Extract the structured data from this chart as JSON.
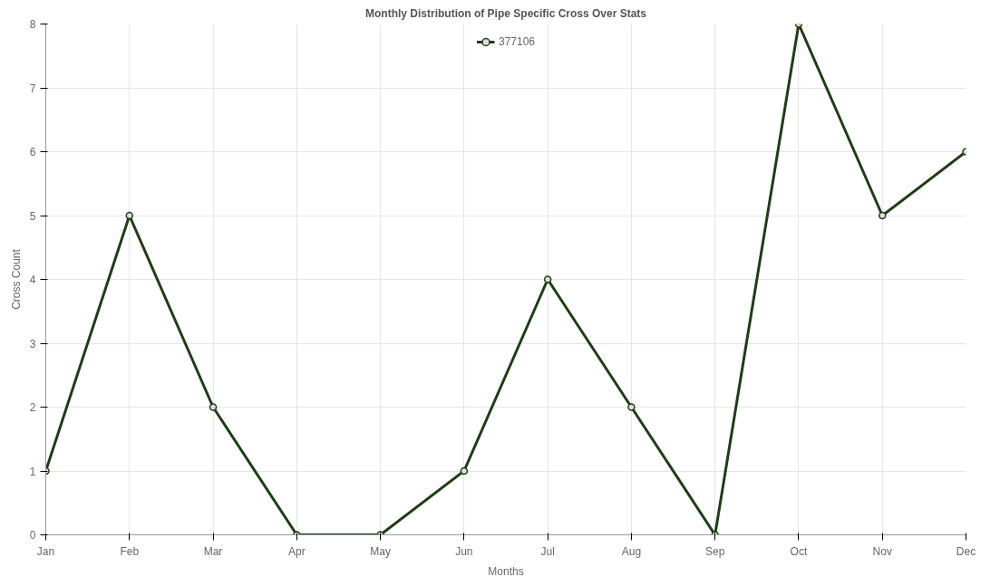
{
  "chart_data": {
    "type": "line",
    "title": "Monthly Distribution of Pipe Specific Cross Over Stats",
    "xlabel": "Months",
    "ylabel": "Cross Count",
    "categories": [
      "Jan",
      "Feb",
      "Mar",
      "Apr",
      "May",
      "Jun",
      "Jul",
      "Aug",
      "Sep",
      "Oct",
      "Nov",
      "Dec"
    ],
    "series": [
      {
        "name": "377106",
        "color": "#1f3d17",
        "values": [
          1,
          5,
          2,
          0,
          0,
          1,
          4,
          2,
          0,
          8,
          5,
          6
        ]
      }
    ],
    "ylim": [
      0,
      8
    ],
    "yticks": [
      0,
      1,
      2,
      3,
      4,
      5,
      6,
      7,
      8
    ],
    "grid": true,
    "legend": "top",
    "marker": "circle",
    "line_style": "solid"
  }
}
